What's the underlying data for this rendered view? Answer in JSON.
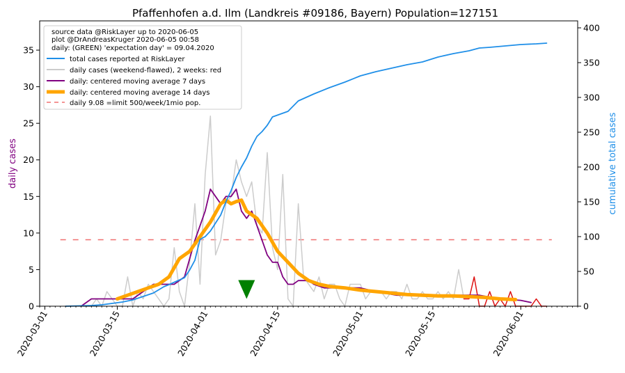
{
  "chart_data": {
    "type": "line",
    "title": "Pfaffenhofen a.d. Ilm (Landkreis #09186, Bayern) Population=127151",
    "ylabel_left": "daily cases",
    "ylabel_right": "cumulative total cases",
    "xlim": [
      "2020-02-29",
      "2020-06-12"
    ],
    "ylim_left": [
      0,
      39
    ],
    "ylim_right": [
      0,
      410
    ],
    "x_ticks": [
      "2020-03-01",
      "2020-03-15",
      "2020-04-01",
      "2020-04-15",
      "2020-05-01",
      "2020-05-15",
      "2020-06-01"
    ],
    "y_ticks_left": [
      "0",
      "5",
      "10",
      "15",
      "20",
      "25",
      "30",
      "35"
    ],
    "y_ticks_right": [
      "0",
      "50",
      "100",
      "150",
      "200",
      "250",
      "300",
      "350",
      "400"
    ],
    "legend_position": "top-left",
    "info_lines": [
      "source data @RiskLayer up to 2020-06-05",
      "plot @DrAndreasKruger 2020-06-05 00:58",
      "daily: (GREEN) 'expectation day' = 09.04.2020"
    ],
    "colors": {
      "cumulative": "#1f8fe8",
      "daily_raw": "#cccccc",
      "daily_recent": "#dd1111",
      "ma7": "#800080",
      "ma14": "#ffa500",
      "limit": "#f07070",
      "marker": "#008000",
      "axis_left_label": "#800080",
      "axis_right_label": "#1f8fe8"
    },
    "series": [
      {
        "key": "cumulative",
        "name": "total cases reported at RiskLayer",
        "axis": "right",
        "x": [
          "2020-03-05",
          "2020-03-10",
          "2020-03-12",
          "2020-03-14",
          "2020-03-16",
          "2020-03-18",
          "2020-03-20",
          "2020-03-22",
          "2020-03-24",
          "2020-03-25",
          "2020-03-28",
          "2020-03-29",
          "2020-03-30",
          "2020-03-31",
          "2020-04-01",
          "2020-04-02",
          "2020-04-04",
          "2020-04-05",
          "2020-04-06",
          "2020-04-07",
          "2020-04-08",
          "2020-04-09",
          "2020-04-10",
          "2020-04-11",
          "2020-04-12",
          "2020-04-13",
          "2020-04-14",
          "2020-04-17",
          "2020-04-19",
          "2020-04-22",
          "2020-04-25",
          "2020-04-28",
          "2020-05-01",
          "2020-05-04",
          "2020-05-07",
          "2020-05-10",
          "2020-05-13",
          "2020-05-16",
          "2020-05-19",
          "2020-05-22",
          "2020-05-24",
          "2020-05-26",
          "2020-05-29",
          "2020-06-01",
          "2020-06-04",
          "2020-06-06"
        ],
        "y": [
          0,
          1,
          2,
          4,
          6,
          9,
          14,
          19,
          28,
          31,
          41,
          52,
          66,
          96,
          100,
          108,
          131,
          150,
          166,
          185,
          200,
          213,
          230,
          244,
          251,
          260,
          272,
          280,
          295,
          305,
          314,
          322,
          331,
          337,
          342,
          347,
          351,
          358,
          363,
          367,
          371,
          372,
          374,
          376,
          377,
          378
        ]
      },
      {
        "key": "daily_raw",
        "name": "daily cases (weekend-flawed), 2 weeks: red",
        "axis": "left",
        "x": [
          "2020-03-05",
          "2020-03-10",
          "2020-03-11",
          "2020-03-12",
          "2020-03-13",
          "2020-03-14",
          "2020-03-15",
          "2020-03-16",
          "2020-03-17",
          "2020-03-18",
          "2020-03-19",
          "2020-03-20",
          "2020-03-21",
          "2020-03-22",
          "2020-03-23",
          "2020-03-24",
          "2020-03-25",
          "2020-03-26",
          "2020-03-27",
          "2020-03-28",
          "2020-03-29",
          "2020-03-30",
          "2020-03-31",
          "2020-04-01",
          "2020-04-02",
          "2020-04-03",
          "2020-04-04",
          "2020-04-05",
          "2020-04-06",
          "2020-04-07",
          "2020-04-08",
          "2020-04-09",
          "2020-04-10",
          "2020-04-11",
          "2020-04-12",
          "2020-04-13",
          "2020-04-14",
          "2020-04-15",
          "2020-04-16",
          "2020-04-17",
          "2020-04-18",
          "2020-04-19",
          "2020-04-20",
          "2020-04-21",
          "2020-04-22",
          "2020-04-23",
          "2020-04-24",
          "2020-04-25",
          "2020-04-26",
          "2020-04-27",
          "2020-04-28",
          "2020-04-29",
          "2020-04-30",
          "2020-05-01",
          "2020-05-02",
          "2020-05-03",
          "2020-05-04",
          "2020-05-05",
          "2020-05-06",
          "2020-05-07",
          "2020-05-08",
          "2020-05-09",
          "2020-05-10",
          "2020-05-11",
          "2020-05-12",
          "2020-05-13",
          "2020-05-14",
          "2020-05-15",
          "2020-05-16",
          "2020-05-17",
          "2020-05-18",
          "2020-05-19",
          "2020-05-20",
          "2020-05-21"
        ],
        "y": [
          0,
          0,
          1,
          0,
          2,
          1,
          0,
          0,
          4,
          0,
          2,
          1,
          3,
          2,
          1,
          0,
          1,
          8,
          2,
          0,
          6,
          14,
          3,
          18,
          26,
          7,
          9,
          14,
          15,
          20,
          17,
          15,
          17,
          11,
          10,
          21,
          8,
          5,
          18,
          1,
          0,
          14,
          4,
          3,
          2,
          4,
          1,
          3,
          3,
          1,
          0,
          3,
          3,
          3,
          1,
          2,
          2,
          2,
          1,
          2,
          2,
          1,
          3,
          1,
          1,
          2,
          1,
          1,
          2,
          1,
          2,
          1,
          5,
          1
        ]
      },
      {
        "key": "daily_recent",
        "name": "",
        "axis": "left",
        "x": [
          "2020-05-21",
          "2020-05-22",
          "2020-05-23",
          "2020-05-24",
          "2020-05-25",
          "2020-05-26",
          "2020-05-27",
          "2020-05-28",
          "2020-05-29",
          "2020-05-30",
          "2020-05-31",
          "2020-06-01",
          "2020-06-02",
          "2020-06-03",
          "2020-06-04",
          "2020-06-05",
          "2020-06-06"
        ],
        "y": [
          1,
          1,
          4,
          0,
          0,
          2,
          0,
          1,
          0,
          2,
          0,
          0,
          0,
          0,
          1,
          0,
          0
        ]
      },
      {
        "key": "ma7",
        "name": "daily: centered moving average 7 days",
        "axis": "left",
        "x": [
          "2020-03-08",
          "2020-03-10",
          "2020-03-12",
          "2020-03-14",
          "2020-03-16",
          "2020-03-18",
          "2020-03-20",
          "2020-03-22",
          "2020-03-24",
          "2020-03-26",
          "2020-03-28",
          "2020-03-30",
          "2020-04-01",
          "2020-04-02",
          "2020-04-03",
          "2020-04-04",
          "2020-04-05",
          "2020-04-06",
          "2020-04-07",
          "2020-04-08",
          "2020-04-09",
          "2020-04-10",
          "2020-04-11",
          "2020-04-12",
          "2020-04-13",
          "2020-04-14",
          "2020-04-15",
          "2020-04-16",
          "2020-04-17",
          "2020-04-18",
          "2020-04-19",
          "2020-04-20",
          "2020-04-21",
          "2020-04-22",
          "2020-04-24",
          "2020-04-26",
          "2020-04-28",
          "2020-05-01",
          "2020-05-04",
          "2020-05-08",
          "2020-05-12",
          "2020-05-16",
          "2020-05-20",
          "2020-05-24",
          "2020-05-28",
          "2020-06-01",
          "2020-06-03"
        ],
        "y": [
          0,
          1,
          1,
          1,
          1,
          1,
          2,
          3,
          3,
          3,
          4,
          9,
          13,
          16,
          15,
          14,
          15,
          15,
          16,
          13,
          12,
          13,
          11,
          9,
          7,
          6,
          6,
          4,
          3,
          3,
          3.5,
          3.5,
          3.5,
          3,
          2.5,
          2.5,
          2.5,
          2.5,
          2,
          1.5,
          1.5,
          1.5,
          1.5,
          1.5,
          1,
          0.8,
          0.5
        ]
      },
      {
        "key": "ma14",
        "name": "daily: centered moving average 14 days",
        "axis": "left",
        "x": [
          "2020-03-15",
          "2020-03-17",
          "2020-03-19",
          "2020-03-21",
          "2020-03-23",
          "2020-03-25",
          "2020-03-27",
          "2020-03-29",
          "2020-03-31",
          "2020-04-02",
          "2020-04-04",
          "2020-04-05",
          "2020-04-06",
          "2020-04-07",
          "2020-04-08",
          "2020-04-09",
          "2020-04-11",
          "2020-04-13",
          "2020-04-15",
          "2020-04-17",
          "2020-04-19",
          "2020-04-21",
          "2020-04-23",
          "2020-04-25",
          "2020-04-28",
          "2020-05-01",
          "2020-05-04",
          "2020-05-07",
          "2020-05-10",
          "2020-05-13",
          "2020-05-16",
          "2020-05-19",
          "2020-05-22",
          "2020-05-25",
          "2020-05-28",
          "2020-05-31"
        ],
        "y": [
          1,
          1.5,
          2,
          2.5,
          3,
          4,
          6.5,
          7.5,
          9.5,
          11.5,
          14,
          14.5,
          14,
          14.3,
          14.5,
          13,
          12,
          10,
          7.5,
          6,
          4.5,
          3.5,
          3,
          2.7,
          2.5,
          2.2,
          2,
          1.8,
          1.6,
          1.5,
          1.4,
          1.4,
          1.3,
          1.2,
          1,
          0.9
        ]
      },
      {
        "key": "limit",
        "name": "daily 9.08 =limit 500/week/1mio pop.",
        "axis": "left",
        "x": [
          "2020-03-04",
          "2020-06-07"
        ],
        "y": [
          9.08,
          9.08
        ]
      }
    ],
    "marker": {
      "x": "2020-04-09",
      "y": 1.0,
      "shape": "triangle-down"
    }
  }
}
